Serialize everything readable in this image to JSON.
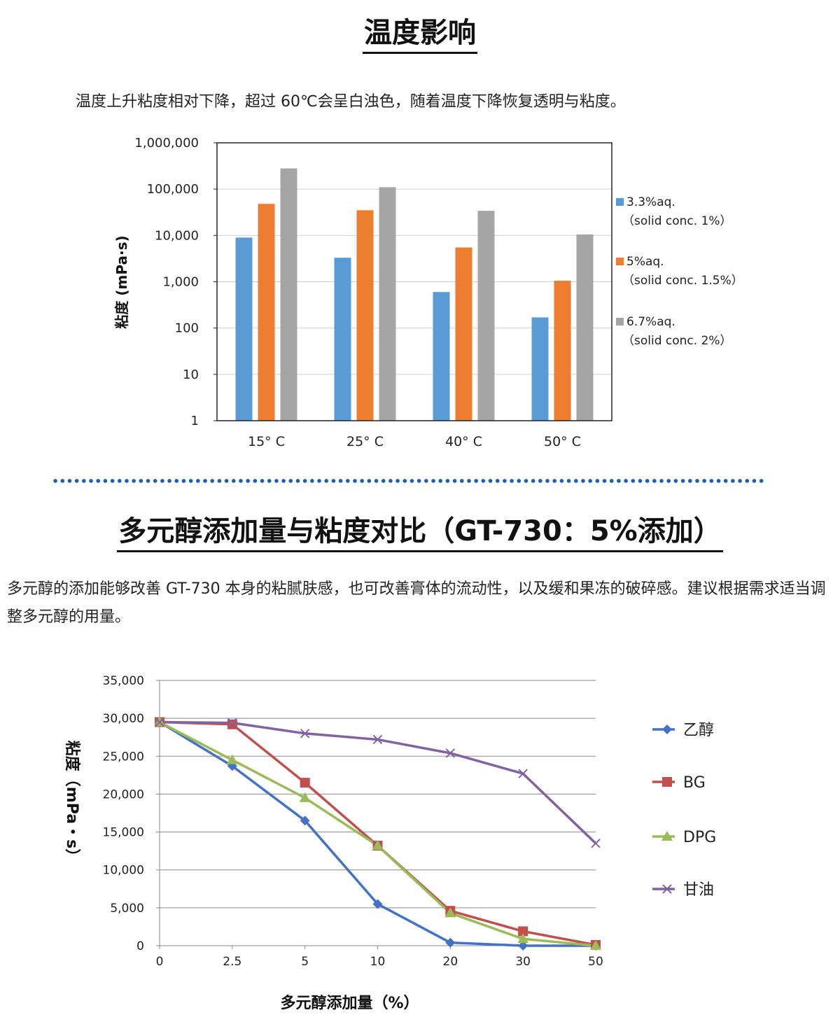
{
  "section1": {
    "title": "温度影响",
    "description": "温度上升粘度相对下降，超过 60℃会呈白浊色，随着温度下降恢复透明与粘度。"
  },
  "section2": {
    "title": "多元醇添加量与粘度对比（GT-730：5%添加）",
    "description": "多元醇的添加能够改善 GT-730 本身的粘腻肤感，也可改善膏体的流动性，以及缓和果冻的破碎感。建议根据需求适当调整多元醇的用量。"
  },
  "chart_data": [
    {
      "type": "bar",
      "ylabel": "粘度 (mPa·s)",
      "scale": "log",
      "ylim": [
        1,
        1000000
      ],
      "y_ticks": [
        "1,000,000",
        "100,000",
        "10,000",
        "1,000",
        "100",
        "10",
        "1"
      ],
      "categories": [
        "15°C",
        "25°C",
        "40°C",
        "50°C"
      ],
      "category_labels": [
        "15° C",
        "25° C",
        "40° C",
        "50° C"
      ],
      "legend_position": "right",
      "grid": true,
      "series": [
        {
          "name": "3.3%aq.",
          "note": "（solid conc. 1%）",
          "color": "#5b9bd5",
          "values": [
            9000,
            3300,
            600,
            170
          ]
        },
        {
          "name": "5%aq.",
          "note": "（solid conc. 1.5%）",
          "color": "#ed7d31",
          "values": [
            48000,
            35000,
            5500,
            1050
          ]
        },
        {
          "name": "6.7%aq.",
          "note": "（solid conc. 2%）",
          "color": "#a5a5a5",
          "values": [
            280000,
            110000,
            34000,
            10500
          ]
        }
      ]
    },
    {
      "type": "line",
      "xlabel": "多元醇添加量（%）",
      "ylabel": "粘度（mPa・s）",
      "ylim": [
        0,
        35000
      ],
      "y_ticks": [
        "35,000",
        "30,000",
        "25,000",
        "20,000",
        "15,000",
        "10,000",
        "5,000",
        "0"
      ],
      "categories": [
        "0",
        "2.5",
        "5",
        "10",
        "20",
        "30",
        "50"
      ],
      "legend_position": "right",
      "grid": true,
      "series": [
        {
          "name": "乙醇",
          "color": "#4472c4",
          "marker": "diamond",
          "values": [
            29500,
            23700,
            16500,
            5500,
            400,
            0,
            0
          ]
        },
        {
          "name": "BG",
          "color": "#c0504d",
          "marker": "square",
          "values": [
            29500,
            29200,
            21500,
            13200,
            4600,
            1900,
            100
          ]
        },
        {
          "name": "DPG",
          "color": "#9bbb59",
          "marker": "triangle",
          "values": [
            29500,
            24500,
            19500,
            13200,
            4300,
            900,
            0
          ]
        },
        {
          "name": "甘油",
          "color": "#8064a2",
          "marker": "x",
          "values": [
            29500,
            29400,
            28000,
            27200,
            25400,
            22700,
            13500
          ]
        }
      ]
    }
  ]
}
